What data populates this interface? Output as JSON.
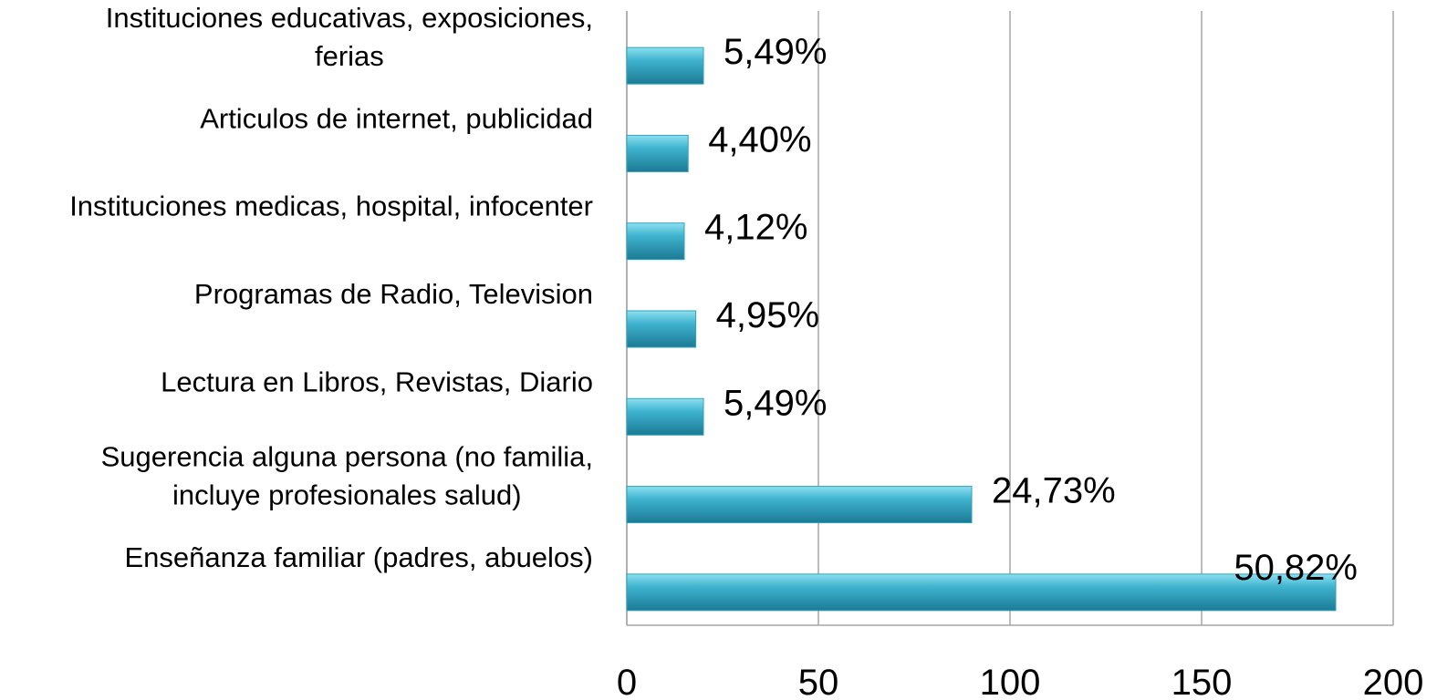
{
  "chart_data": {
    "type": "bar",
    "orientation": "horizontal",
    "categories": [
      "Instituciones educativas, exposiciones,\nferias",
      "Articulos de internet, publicidad",
      "Instituciones medicas, hospital, infocenter",
      "Programas de Radio, Television",
      "Lectura en Libros, Revistas, Diario",
      "Sugerencia alguna persona (no familia,\nincluye profesionales salud)",
      "Enseñanza familiar (padres, abuelos)"
    ],
    "values": [
      20,
      16,
      15,
      18,
      20,
      90,
      185
    ],
    "annotations": [
      "5,49%",
      "4,40%",
      "4,12%",
      "4,95%",
      "5,49%",
      "24,73%",
      "50,82%"
    ],
    "color": "#2fa3c0",
    "xlim": [
      0,
      200
    ],
    "xticks": [
      0,
      50,
      100,
      150,
      200
    ],
    "grid": true
  }
}
